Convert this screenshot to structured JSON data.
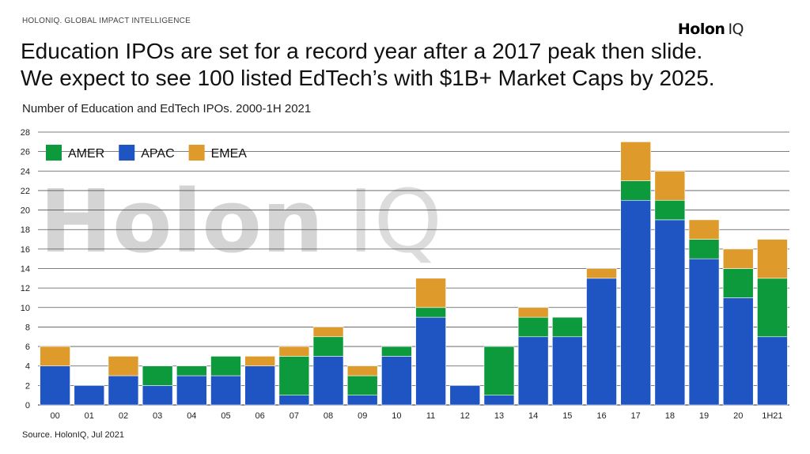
{
  "header": {
    "brand_line": "HOLONIQ. GLOBAL IMPACT INTELLIGENCE",
    "logo_main": "Holon",
    "logo_suffix": "IQ",
    "headline_line1": "Education IPOs are set for a record year after a 2017 peak then slide.",
    "headline_line2": "We expect to see 100 listed EdTech’s with $1B+ Market Caps by 2025.",
    "subtitle": "Number of Education and EdTech IPOs. 2000-1H 2021"
  },
  "footer": {
    "source": "Source. HolonIQ, Jul 2021"
  },
  "watermark": {
    "main": "Holon",
    "suffix": "IQ"
  },
  "colors": {
    "AMER": "#0d9a3c",
    "APAC": "#1f55c2",
    "EMEA": "#de9b2b",
    "grid": "#555555"
  },
  "chart_data": {
    "type": "bar",
    "stacked": true,
    "categories": [
      "00",
      "01",
      "02",
      "03",
      "04",
      "05",
      "06",
      "07",
      "08",
      "09",
      "10",
      "11",
      "12",
      "13",
      "14",
      "15",
      "16",
      "17",
      "18",
      "19",
      "20",
      "1H21"
    ],
    "series": [
      {
        "name": "APAC",
        "values": [
          4,
          2,
          3,
          2,
          3,
          3,
          4,
          1,
          5,
          1,
          5,
          9,
          2,
          1,
          7,
          7,
          13,
          21,
          19,
          15,
          11,
          7
        ]
      },
      {
        "name": "AMER",
        "values": [
          0,
          0,
          0,
          2,
          1,
          2,
          0,
          4,
          2,
          2,
          1,
          1,
          0,
          5,
          2,
          2,
          0,
          2,
          2,
          2,
          3,
          6
        ]
      },
      {
        "name": "EMEA",
        "values": [
          2,
          0,
          2,
          0,
          0,
          0,
          1,
          1,
          1,
          1,
          0,
          3,
          0,
          0,
          1,
          0,
          1,
          4,
          3,
          2,
          2,
          4
        ]
      }
    ],
    "legend_order": [
      "AMER",
      "APAC",
      "EMEA"
    ],
    "legend_position": "top-left",
    "ylim": [
      0,
      28
    ],
    "yticks": [
      0,
      2,
      4,
      6,
      8,
      10,
      12,
      14,
      16,
      18,
      20,
      22,
      24,
      26,
      28
    ],
    "grid": true,
    "xlabel": "",
    "ylabel": ""
  }
}
